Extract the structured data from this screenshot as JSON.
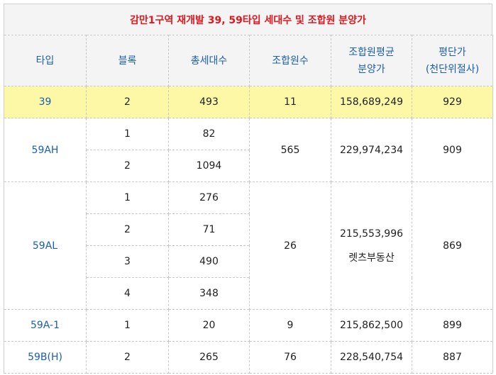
{
  "title": "감만1구역 재개발 39, 59타입 세대수 및 조합원 분양가",
  "headers": {
    "type": "타입",
    "block": "블록",
    "households": "총세대수",
    "members": "조합원수",
    "price_line1": "조합원평균",
    "price_line2": "분양가",
    "pyeong_line1": "평단가",
    "pyeong_line2": "(천단위절사)"
  },
  "rows": {
    "t39": {
      "type": "39",
      "block": "2",
      "households": "493",
      "members": "11",
      "price": "158,689,249",
      "pyeong": "929"
    },
    "t59ah": {
      "type": "59AH",
      "blocks": [
        "1",
        "2"
      ],
      "households": [
        "82",
        "1094"
      ],
      "members": "565",
      "price": "229,974,234",
      "pyeong": "909"
    },
    "t59al": {
      "type": "59AL",
      "blocks": [
        "1",
        "2",
        "3",
        "4"
      ],
      "households": [
        "276",
        "71",
        "490",
        "348"
      ],
      "members": "26",
      "price": "215,553,996",
      "price_note": "렛츠부동산",
      "pyeong": "869"
    },
    "t59a1": {
      "type": "59A-1",
      "block": "1",
      "households": "20",
      "members": "9",
      "price": "215,862,500",
      "pyeong": "899"
    },
    "t59bh": {
      "type": "59B(H)",
      "block": "2",
      "households": "265",
      "members": "76",
      "price": "228,540,754",
      "pyeong": "887"
    }
  }
}
